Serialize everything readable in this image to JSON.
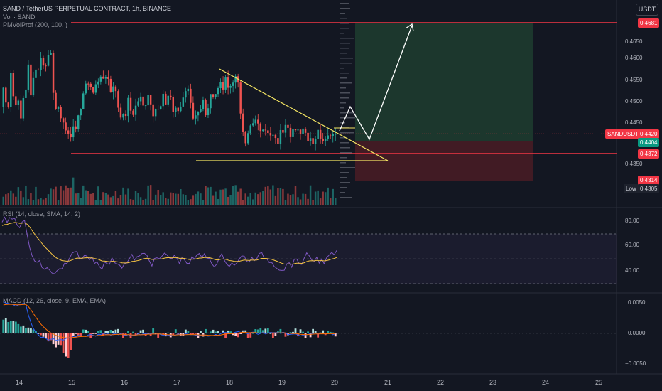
{
  "legend": {
    "main": "SAND / TetherUS PERPETUAL CONTRACT, 1h, BINANCE",
    "vol": "Vol · SAND",
    "pmvol": "PMVolProf (200, 100, )",
    "rsi": "RSI (14, close, SMA, 14, 2)",
    "macd": "MACD (12, 26, close, 9, EMA, EMA)"
  },
  "currency": "USDT",
  "price_axis": [
    "0.4650",
    "0.4600",
    "0.4550",
    "0.4500",
    "0.4450",
    "0.4350"
  ],
  "price_tags": {
    "target": "0.4681",
    "symbol": "SANDUSDT.P",
    "last": "0.4420",
    "entry": "0.4404",
    "support": "0.4372",
    "stop": "0.4314",
    "low_label": "Low",
    "low": "0.4305"
  },
  "rsi_axis": [
    "80.00",
    "60.00",
    "40.00"
  ],
  "macd_axis": [
    "0.0050",
    "0.0000",
    "−0.0050"
  ],
  "time_axis": [
    "14",
    "15",
    "16",
    "17",
    "18",
    "19",
    "20",
    "21",
    "22",
    "23",
    "24",
    "25"
  ],
  "colors": {
    "background": "#131722",
    "bull": "#26a69a",
    "bear": "#ef5350",
    "redline": "#f23645",
    "yellow": "#f5e663",
    "long_zone": "#1e3d2f",
    "short_zone": "#4a1c24",
    "rsi_line": "#7e57c2",
    "rsi_ma": "#f5c342",
    "macd_line": "#2962ff",
    "signal_line": "#ff6d00"
  }
}
